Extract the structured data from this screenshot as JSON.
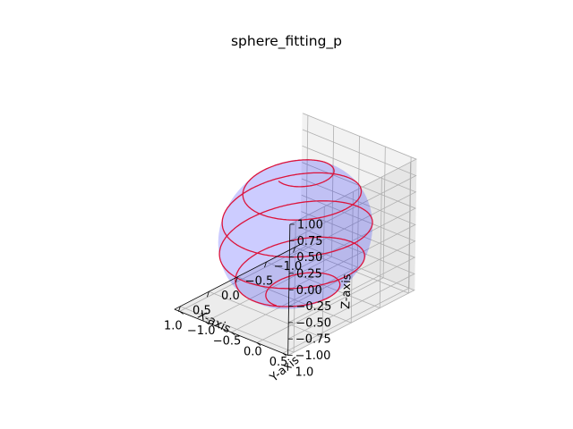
{
  "chart_data": {
    "type": "3d-surface-line",
    "title": "sphere_fitting_p",
    "xlabel": "X-axis",
    "ylabel": "Y-axis",
    "zlabel": "Z-axis",
    "xlim": [
      -1.1,
      1.1
    ],
    "ylim": [
      -1.1,
      1.1
    ],
    "zlim": [
      -1.0,
      1.0
    ],
    "x_ticks": [
      -1.0,
      -0.5,
      0.0,
      0.5,
      1.0
    ],
    "y_ticks": [
      -1.0,
      -0.5,
      0.0,
      0.5,
      1.0
    ],
    "z_ticks": [
      -1.0,
      -0.75,
      -0.5,
      -0.25,
      0.0,
      0.25,
      0.5,
      0.75,
      1.0
    ],
    "x_tick_labels": [
      "−1.0",
      "−0.5",
      "0.0",
      "0.5",
      "1.0"
    ],
    "y_tick_labels": [
      "−1.0",
      "−0.5",
      "0.0",
      "0.5",
      "1.0"
    ],
    "z_tick_labels": [
      "−1.00",
      "−0.75",
      "−0.50",
      "−0.25",
      "0.00",
      "0.25",
      "0.50",
      "0.75",
      "1.00"
    ],
    "surface": {
      "shape": "unit sphere",
      "radius": 1.0,
      "color": "#0000ff",
      "alpha": 0.2
    },
    "curve": {
      "shape": "spherical spiral",
      "color": "#dc143c"
    },
    "grid": true
  }
}
